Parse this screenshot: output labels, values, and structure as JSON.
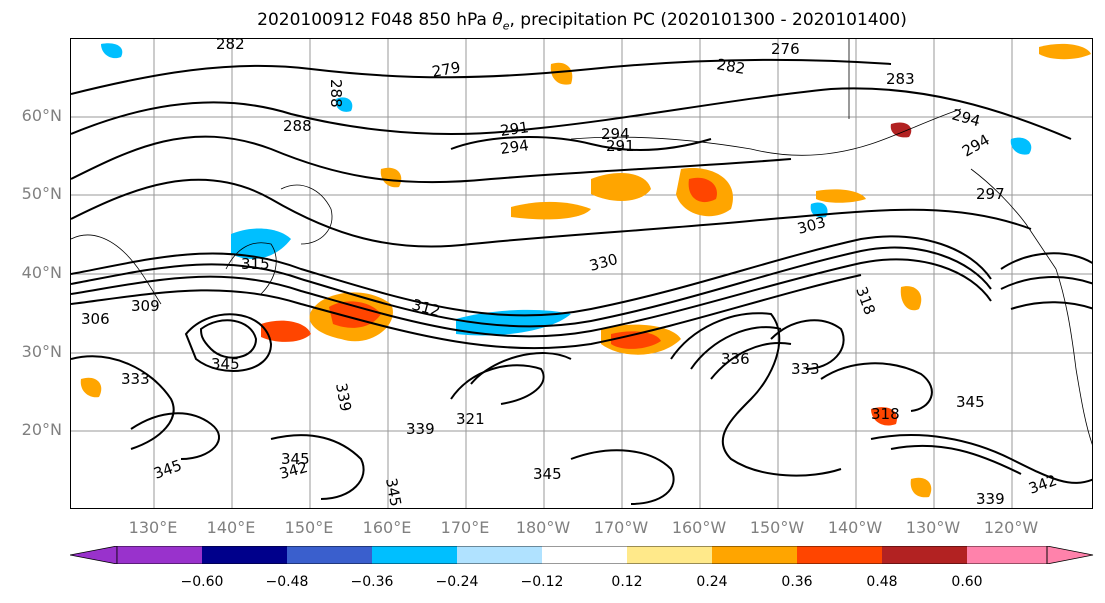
{
  "title": {
    "prefix": "2020100912 F048 850 hPa ",
    "theta": "θ",
    "theta_sub": "e",
    "suffix": ", precipitation PC (2020101300 - 2020101400)"
  },
  "lat_labels": [
    "60°N",
    "50°N",
    "40°N",
    "30°N",
    "20°N"
  ],
  "lon_labels": [
    "130°E",
    "140°E",
    "150°E",
    "160°E",
    "170°E",
    "180°W",
    "170°W",
    "160°W",
    "150°W",
    "140°W",
    "130°W",
    "120°W"
  ],
  "contour_labels": [
    "276",
    "282",
    "279",
    "283",
    "288",
    "291",
    "294",
    "297",
    "303",
    "306",
    "309",
    "312",
    "315",
    "318",
    "321",
    "330",
    "333",
    "336",
    "339",
    "342",
    "345"
  ],
  "colorbar": {
    "ticks": [
      "−0.60",
      "−0.48",
      "−0.36",
      "−0.24",
      "−0.12",
      "0.12",
      "0.24",
      "0.36",
      "0.48",
      "0.60"
    ],
    "colors": [
      "#9932cc",
      "#00008b",
      "#3a5fcd",
      "#00bfff",
      "#b0e2ff",
      "#ffffff",
      "#ffe98a",
      "#ffa500",
      "#ff4500",
      "#b22222",
      "#ff82ab"
    ]
  }
}
